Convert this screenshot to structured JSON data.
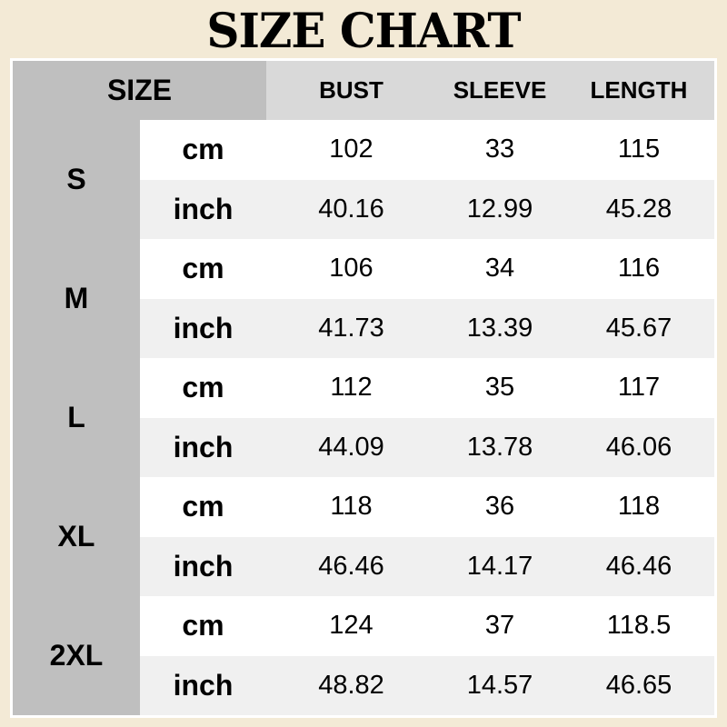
{
  "title": "SIZE CHART",
  "header": {
    "size": "SIZE",
    "columns": [
      "BUST",
      "SLEEVE",
      "LENGTH"
    ]
  },
  "rows": [
    {
      "size": "S",
      "cm": {
        "unit": "cm",
        "values": [
          "102",
          "33",
          "115"
        ]
      },
      "inch": {
        "unit": "inch",
        "values": [
          "40.16",
          "12.99",
          "45.28"
        ]
      }
    },
    {
      "size": "M",
      "cm": {
        "unit": "cm",
        "values": [
          "106",
          "34",
          "116"
        ]
      },
      "inch": {
        "unit": "inch",
        "values": [
          "41.73",
          "13.39",
          "45.67"
        ]
      }
    },
    {
      "size": "L",
      "cm": {
        "unit": "cm",
        "values": [
          "112",
          "35",
          "117"
        ]
      },
      "inch": {
        "unit": "inch",
        "values": [
          "44.09",
          "13.78",
          "46.06"
        ]
      }
    },
    {
      "size": "XL",
      "cm": {
        "unit": "cm",
        "values": [
          "118",
          "36",
          "118"
        ]
      },
      "inch": {
        "unit": "inch",
        "values": [
          "46.46",
          "14.17",
          "46.46"
        ]
      }
    },
    {
      "size": "2XL",
      "cm": {
        "unit": "cm",
        "values": [
          "124",
          "37",
          "118.5"
        ]
      },
      "inch": {
        "unit": "inch",
        "values": [
          "48.82",
          "14.57",
          "46.65"
        ]
      }
    }
  ],
  "colors": {
    "background": "#f3ead6",
    "size_column": "#bfbfbf",
    "header": "#d9d9d9",
    "alt_row": "#f0f0f0"
  }
}
